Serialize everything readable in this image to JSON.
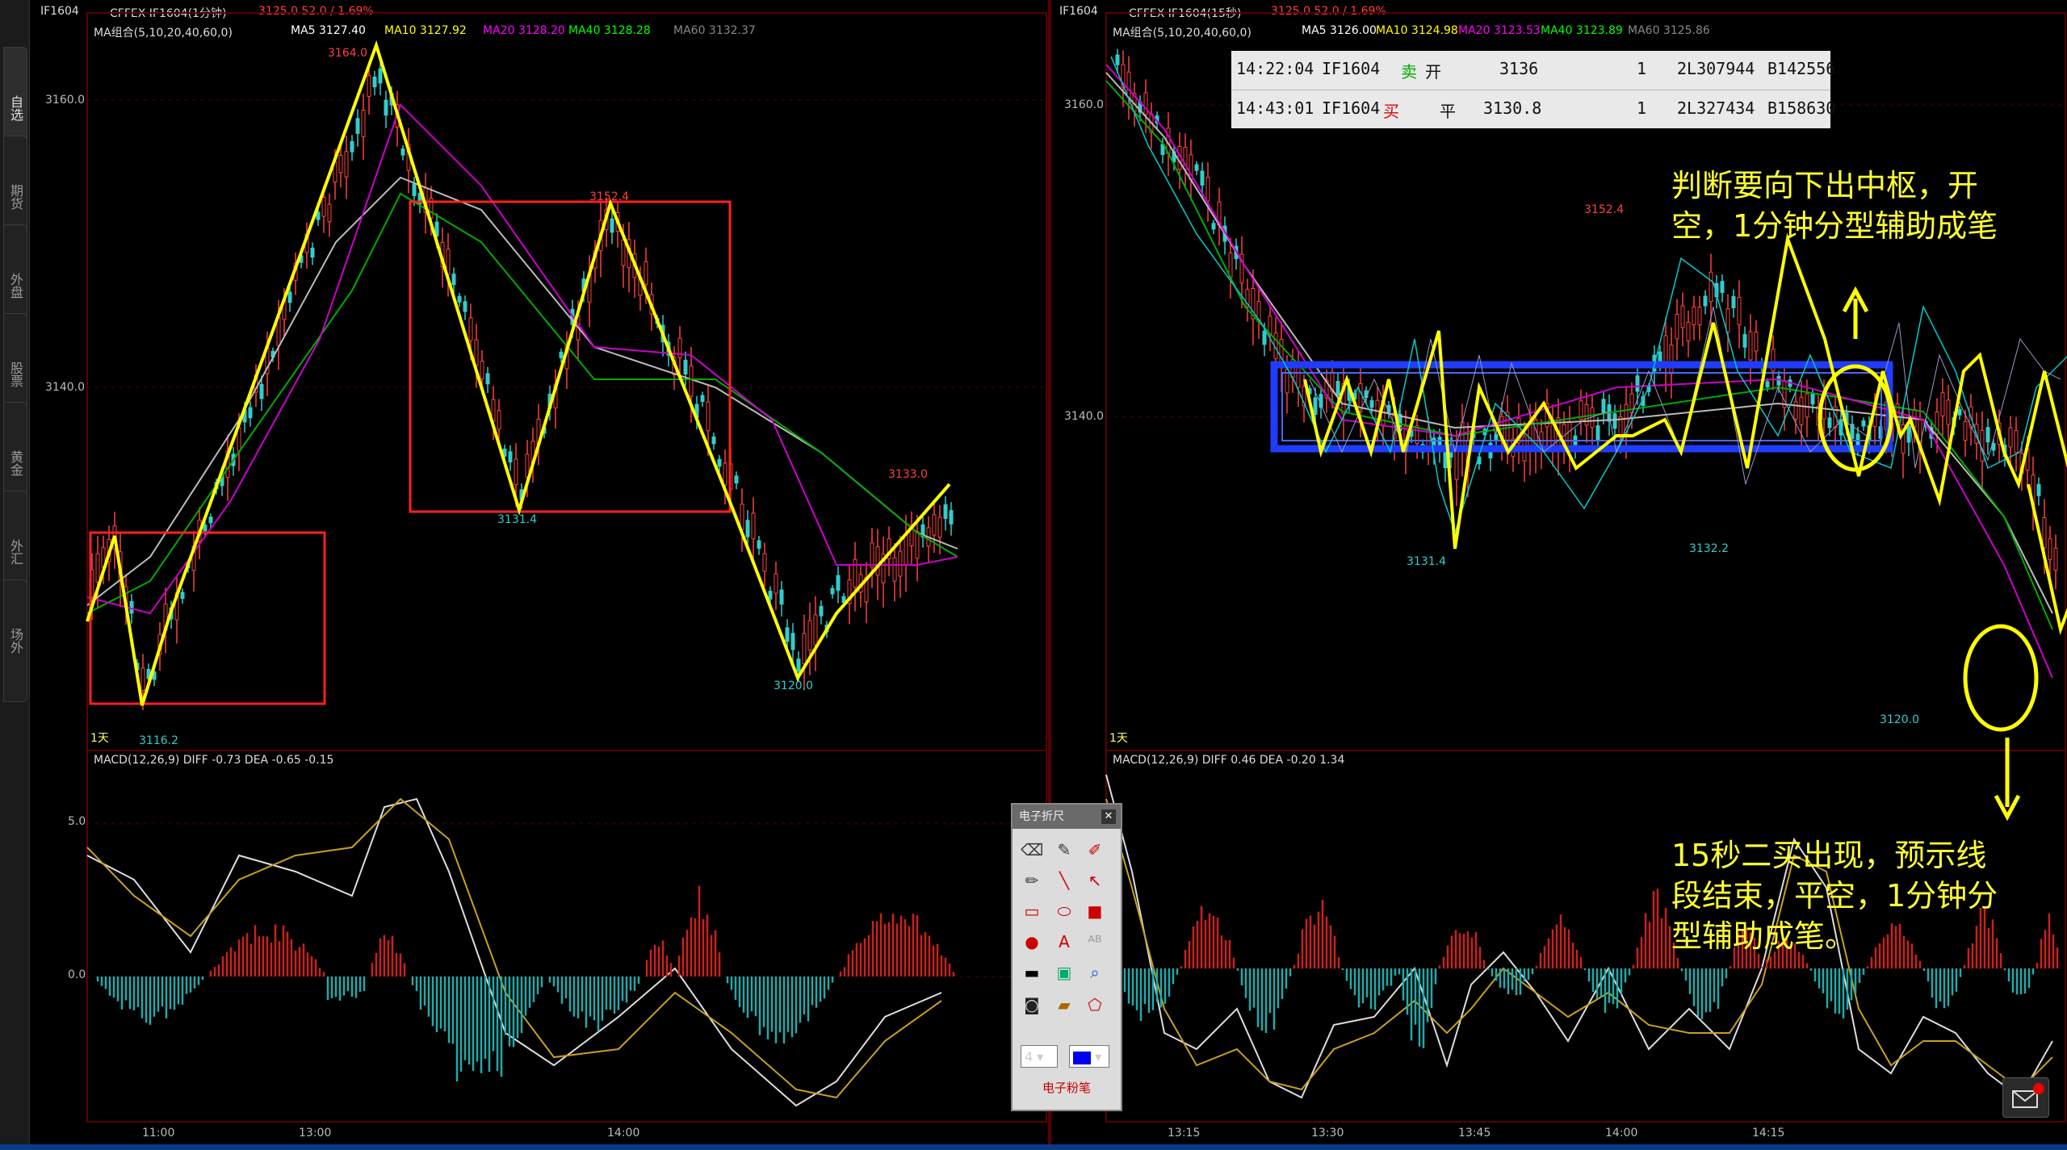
{
  "sidebar": {
    "tabs": [
      {
        "label": "自选",
        "active": true
      },
      {
        "label": "期货"
      },
      {
        "label": "外盘"
      },
      {
        "label": "股票"
      },
      {
        "label": "黄金"
      },
      {
        "label": "外汇"
      },
      {
        "label": "场外"
      }
    ]
  },
  "left_chart": {
    "symbol": "IF1604",
    "title": "CFFEX IF1604(1分钟)",
    "quote": "3125.0  52.0 / 1.69%",
    "ma_label": "MA组合(5,10,20,40,60,0)",
    "ma_values": [
      {
        "name": "MA5 3127.40",
        "color": "#ffffff"
      },
      {
        "name": "MA10 3127.92",
        "color": "#ffff00"
      },
      {
        "name": "MA20 3128.20",
        "color": "#ff00ff"
      },
      {
        "name": "MA40 3128.28",
        "color": "#00ff00"
      },
      {
        "name": "MA60 3132.37",
        "color": "#888888"
      }
    ],
    "y_ticks": [
      "3160.0",
      "3140.0"
    ],
    "price_labels": [
      "3164.0",
      "3152.4",
      "3131.4",
      "3133.0",
      "3120.0",
      "3116.2"
    ],
    "period": "1天",
    "macd_label": "MACD(12,26,9)  DIFF -0.73   DEA -0.65    -0.15",
    "macd_ticks": [
      "5.0",
      "0.0"
    ],
    "x_ticks": [
      "11:00",
      "13:00",
      "14:00"
    ]
  },
  "right_chart": {
    "symbol": "IF1604",
    "title": "CFFEX IF1604(15秒)",
    "quote": "3125.0  52.0 / 1.69%",
    "ma_label": "MA组合(5,10,20,40,60,0)",
    "ma_values": [
      {
        "name": "MA5 3126.00",
        "color": "#ffffff"
      },
      {
        "name": "MA10 3124.98",
        "color": "#ffff00"
      },
      {
        "name": "MA20 3123.53",
        "color": "#ff00ff"
      },
      {
        "name": "MA40 3123.89",
        "color": "#00ff00"
      },
      {
        "name": "MA60 3125.86",
        "color": "#888888"
      }
    ],
    "y_ticks": [
      "3160.0",
      "3140.0"
    ],
    "price_labels": [
      "3152.4",
      "3131.4",
      "3132.2",
      "3120.0"
    ],
    "period": "1天",
    "macd_label": "MACD(12,26,9)  DIFF 0.46   DEA -0.20    1.34",
    "x_ticks": [
      "13:15",
      "13:30",
      "13:45",
      "14:00",
      "14:15"
    ]
  },
  "trade_table": [
    {
      "time": "14:22:04",
      "code": "IF1604",
      "side": "卖",
      "action": "开",
      "price": "3136",
      "qty": "1",
      "order": "2L307944",
      "ref": "B142556"
    },
    {
      "time": "14:43:01",
      "code": "IF1604",
      "side": "买",
      "action": "平",
      "price": "3130.8",
      "qty": "1",
      "order": "2L327434",
      "ref": "B158630"
    }
  ],
  "annotations": {
    "top": "判断要向下出中枢，开\n空，1分钟分型辅助成笔",
    "bottom": "15秒二买出现，预示线\n段结束，平空，1分钟分\n型辅助成笔。"
  },
  "draw_tool": {
    "title": "电子折尺",
    "size_value": "4",
    "footer": "电子粉笔"
  },
  "colors": {
    "accent": "#ffff33",
    "rise": "#ff3333",
    "fall": "#33cccc",
    "box_red": "#ff2020",
    "box_blue": "#1f3cff"
  }
}
